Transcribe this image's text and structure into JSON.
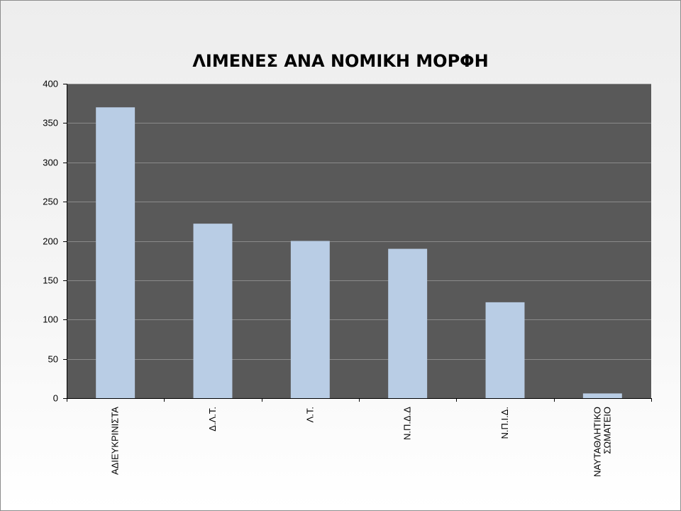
{
  "chart_data": {
    "type": "bar",
    "title": "ΛΙΜΕΝΕΣ ΑΝΑ ΝΟΜΙΚΗ ΜΟΡΦΗ",
    "categories": [
      [
        "ΑΔΙΕΥΚΡΙΝΙΣΤΑ"
      ],
      [
        "Δ.Λ.Τ."
      ],
      [
        "Λ.Τ."
      ],
      [
        "Ν.Π.Δ.Δ"
      ],
      [
        "Ν.Π.Ι.Δ."
      ],
      [
        "ΝΑΥΤΑΘΛΗΤΙΚΟ",
        "ΣΩΜΑΤΕΙΟ"
      ]
    ],
    "values": [
      370,
      222,
      200,
      190,
      122,
      6
    ],
    "xlabel": "",
    "ylabel": "",
    "ylim": [
      0,
      400
    ],
    "yticks": [
      "0",
      "50",
      "100",
      "150",
      "200",
      "250",
      "300",
      "350",
      "400"
    ],
    "grid": true,
    "legend": "none",
    "colors": {
      "plot_background": "#595959",
      "bar_fill": "#b9cde5",
      "gridline": "#8a8a8a",
      "axis": "#000000"
    }
  }
}
